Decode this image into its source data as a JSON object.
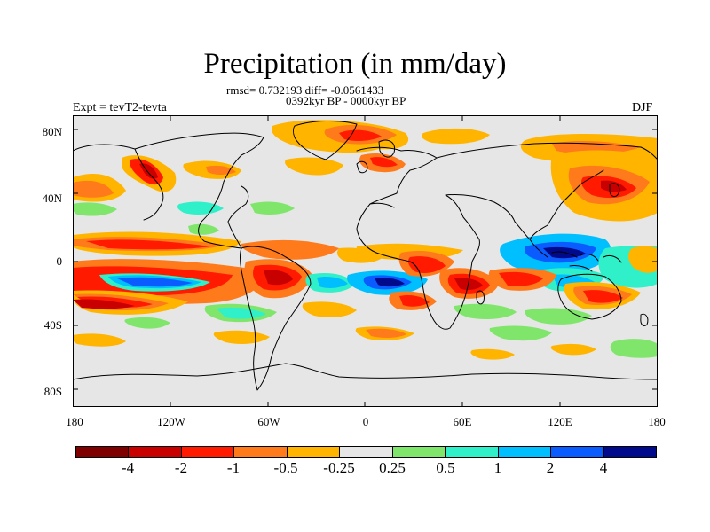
{
  "title": "Precipitation (in mm/day)",
  "stats_line": "rmsd= 0.732193 diff= -0.0561433",
  "period_line": "0392kyr BP - 0000kyr BP",
  "experiment_label": "Expt = tevT2-tevta",
  "season_label": "DJF",
  "y_axis_ticks": [
    "80N",
    "40N",
    "0",
    "40S",
    "80S"
  ],
  "x_axis_ticks": [
    "180",
    "120W",
    "60W",
    "0",
    "60E",
    "120E",
    "180"
  ],
  "colorbar": {
    "colors": [
      "#7f0000",
      "#c80000",
      "#ff1a00",
      "#ff7a1a",
      "#ffb400",
      "#e6e6e6",
      "#7fe66b",
      "#2ff0c8",
      "#00bfff",
      "#0a5cff",
      "#000a8a"
    ],
    "labels": [
      "-4",
      "-2",
      "-1",
      "-0.5",
      "-0.25",
      "0.25",
      "0.5",
      "1",
      "2",
      "4"
    ]
  },
  "map_colors": {
    "background": "#e6e6e6",
    "coast": "#000000"
  }
}
